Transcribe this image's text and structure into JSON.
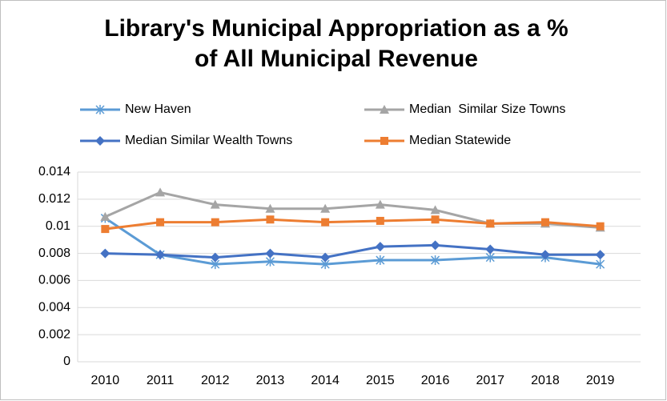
{
  "chart_data": {
    "type": "line",
    "title": [
      "Library's Municipal Appropriation as a %",
      "of All Municipal Revenue"
    ],
    "categories": [
      "2010",
      "2011",
      "2012",
      "2013",
      "2014",
      "2015",
      "2016",
      "2017",
      "2018",
      "2019"
    ],
    "series": [
      {
        "name": "New Haven",
        "color": "#5b9bd5",
        "marker": "star",
        "values": [
          0.0106,
          0.0079,
          0.0072,
          0.0074,
          0.0072,
          0.0075,
          0.0075,
          0.0077,
          0.0077,
          0.0072
        ]
      },
      {
        "name": "Median  Similar Size Towns",
        "color": "#a5a5a5",
        "marker": "triangle",
        "values": [
          0.0107,
          0.0125,
          0.0116,
          0.0113,
          0.0113,
          0.0116,
          0.0112,
          0.0102,
          0.0102,
          0.0099
        ]
      },
      {
        "name": "Median Similar Wealth Towns",
        "color": "#4472c4",
        "marker": "diamond",
        "values": [
          0.008,
          0.0079,
          0.0077,
          0.008,
          0.0077,
          0.0085,
          0.0086,
          0.0083,
          0.0079,
          0.0079
        ]
      },
      {
        "name": "Median Statewide",
        "color": "#ed7d31",
        "marker": "square",
        "values": [
          0.0098,
          0.0103,
          0.0103,
          0.0105,
          0.0103,
          0.0104,
          0.0105,
          0.0102,
          0.0103,
          0.01
        ]
      }
    ],
    "ylim": [
      0,
      0.014
    ],
    "yticks": [
      0,
      0.002,
      0.004,
      0.006,
      0.008,
      0.01,
      0.012,
      0.014
    ],
    "grid": true
  }
}
